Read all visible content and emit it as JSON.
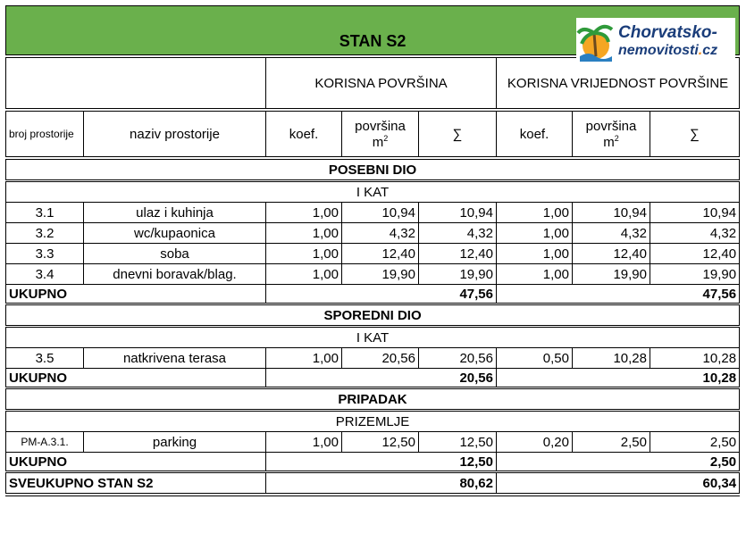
{
  "title": "STAN S2",
  "logo": {
    "line1": "Chorvatsko-",
    "line2a": "nemovitosti",
    "dot": ".",
    "line2b": "cz"
  },
  "header": {
    "group1": "KORISNA POVRŠINA",
    "group2": "KORISNA VRIJEDNOST POVRŠINE",
    "col_broj": "broj prostorije",
    "col_naziv": "naziv prostorije",
    "col_koef": "koef.",
    "col_povrsina": "površina",
    "col_unit": "m",
    "col_unit_sup": "2",
    "col_sum": "∑"
  },
  "sections": [
    {
      "title": "POSEBNI DIO",
      "floor": "I KAT",
      "rows": [
        {
          "broj": "3.1",
          "naziv": "ulaz i kuhinja",
          "k1": "1,00",
          "p1": "10,94",
          "s1": "10,94",
          "k2": "1,00",
          "p2": "10,94",
          "s2": "10,94"
        },
        {
          "broj": "3.2",
          "naziv": "wc/kupaonica",
          "k1": "1,00",
          "p1": "4,32",
          "s1": "4,32",
          "k2": "1,00",
          "p2": "4,32",
          "s2": "4,32"
        },
        {
          "broj": "3.3",
          "naziv": "soba",
          "k1": "1,00",
          "p1": "12,40",
          "s1": "12,40",
          "k2": "1,00",
          "p2": "12,40",
          "s2": "12,40"
        },
        {
          "broj": "3.4",
          "naziv": "dnevni boravak/blag.",
          "k1": "1,00",
          "p1": "19,90",
          "s1": "19,90",
          "k2": "1,00",
          "p2": "19,90",
          "s2": "19,90"
        }
      ],
      "total_label": "UKUPNO",
      "total1": "47,56",
      "total2": "47,56"
    },
    {
      "title": "SPOREDNI DIO",
      "floor": "I KAT",
      "rows": [
        {
          "broj": "3.5",
          "naziv": "natkrivena terasa",
          "k1": "1,00",
          "p1": "20,56",
          "s1": "20,56",
          "k2": "0,50",
          "p2": "10,28",
          "s2": "10,28"
        }
      ],
      "total_label": "UKUPNO",
      "total1": "20,56",
      "total2": "10,28"
    },
    {
      "title": "PRIPADAK",
      "floor": "PRIZEMLJE",
      "rows": [
        {
          "broj": "PM-A.3.1.",
          "naziv": "parking",
          "k1": "1,00",
          "p1": "12,50",
          "s1": "12,50",
          "k2": "0,20",
          "p2": "2,50",
          "s2": "2,50"
        }
      ],
      "total_label": "UKUPNO",
      "total1": "12,50",
      "total2": "2,50"
    }
  ],
  "grand": {
    "label": "SVEUKUPNO STAN S2",
    "total1": "80,62",
    "total2": "60,34"
  }
}
